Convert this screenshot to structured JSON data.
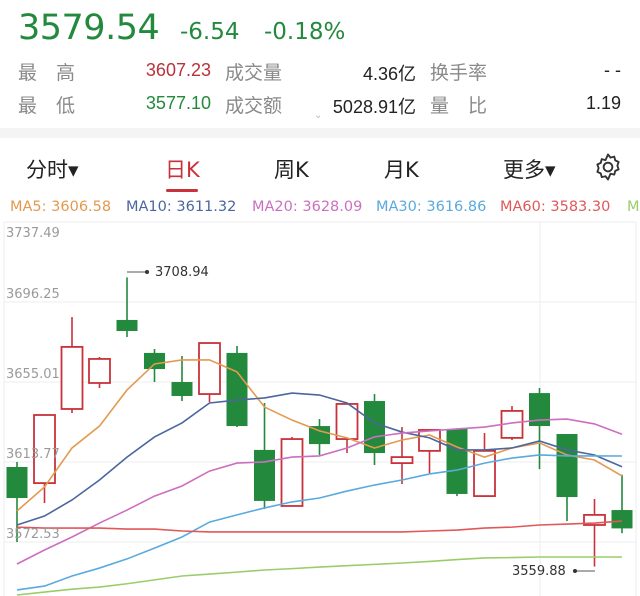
{
  "quote": {
    "price": "3579.54",
    "change": "-6.54",
    "change_pct": "-0.18%",
    "color": "#23893d"
  },
  "stats": {
    "high_label": "最　高",
    "high": "3607.23",
    "vol_label": "成交量",
    "vol": "4.36亿",
    "turnover_label": "换手率",
    "turnover": "- -",
    "low_label": "最　低",
    "low": "3577.10",
    "amount_label": "成交额",
    "amount": "5028.91亿",
    "ratio_label": "量　比",
    "ratio": "1.19",
    "expand_icon": "chevron-down-icon"
  },
  "tabs": [
    {
      "label": "分时▾"
    },
    {
      "label": "日K",
      "active": true
    },
    {
      "label": "周K"
    },
    {
      "label": "月K"
    },
    {
      "label": "更多▾"
    }
  ],
  "settings_icon": "gear-icon",
  "ma_legend": [
    {
      "label": "MA5: 3606.58",
      "color": "#e39a50"
    },
    {
      "label": "MA10: 3611.32",
      "color": "#4b669e"
    },
    {
      "label": "MA20: 3628.09",
      "color": "#cc6fc0"
    },
    {
      "label": "MA30: 3616.86",
      "color": "#5aaade"
    },
    {
      "label": "MA60: 3583.30",
      "color": "#e05858"
    },
    {
      "label": "M",
      "color": "#9acd6a"
    }
  ],
  "chart_data": {
    "type": "candlestick",
    "y_ticks": [
      "3737.49",
      "3696.25",
      "3655.01",
      "3613.77",
      "3572.53"
    ],
    "ylim": [
      3537.0,
      3737.49
    ],
    "grid": true,
    "up_color": "#c8323a",
    "down_color": "#23893d",
    "high_annotation": "3708.94",
    "low_annotation": "3559.88",
    "candles": [
      {
        "o": 3611.2,
        "c": 3595.2,
        "h": 3613.8,
        "l": 3572.5
      },
      {
        "o": 3602.9,
        "c": 3638.0,
        "h": 3638.0,
        "l": 3592.6
      },
      {
        "o": 3641.1,
        "c": 3673.1,
        "h": 3688.5,
        "l": 3639.0
      },
      {
        "o": 3654.5,
        "c": 3666.9,
        "h": 3667.9,
        "l": 3651.9
      },
      {
        "o": 3687.0,
        "c": 3681.3,
        "h": 3708.94,
        "l": 3678.2
      },
      {
        "o": 3670.0,
        "c": 3661.7,
        "h": 3672.0,
        "l": 3655.0
      },
      {
        "o": 3655.0,
        "c": 3647.8,
        "h": 3668.4,
        "l": 3645.2
      },
      {
        "o": 3648.8,
        "c": 3675.1,
        "h": 3675.1,
        "l": 3644.7
      },
      {
        "o": 3670.0,
        "c": 3632.3,
        "h": 3673.6,
        "l": 3631.8
      },
      {
        "o": 3620.0,
        "c": 3593.7,
        "h": 3644.2,
        "l": 3589.5
      },
      {
        "o": 3591.1,
        "c": 3625.6,
        "h": 3626.7,
        "l": 3591.1
      },
      {
        "o": 3632.3,
        "c": 3623.0,
        "h": 3635.9,
        "l": 3617.4
      },
      {
        "o": 3625.6,
        "c": 3643.7,
        "h": 3644.2,
        "l": 3618.4
      },
      {
        "o": 3645.2,
        "c": 3618.4,
        "h": 3648.8,
        "l": 3612.2
      },
      {
        "o": 3613.2,
        "c": 3616.3,
        "h": 3631.8,
        "l": 3602.4
      },
      {
        "o": 3619.5,
        "c": 3630.3,
        "h": 3630.3,
        "l": 3608.1
      },
      {
        "o": 3630.8,
        "c": 3597.3,
        "h": 3630.8,
        "l": 3596.2
      },
      {
        "o": 3596.2,
        "c": 3619.5,
        "h": 3628.7,
        "l": 3595.7
      },
      {
        "o": 3626.2,
        "c": 3640.1,
        "h": 3642.6,
        "l": 3625.1
      },
      {
        "o": 3649.3,
        "c": 3632.3,
        "h": 3651.9,
        "l": 3610.1
      },
      {
        "o": 3628.2,
        "c": 3595.7,
        "h": 3628.2,
        "l": 3583.3
      },
      {
        "o": 3581.3,
        "c": 3586.5,
        "h": 3594.7,
        "l": 3559.88
      },
      {
        "o": 3589.0,
        "c": 3579.54,
        "h": 3607.23,
        "l": 3577.1
      }
    ],
    "series": [
      {
        "name": "MA5",
        "color": "#e39a50",
        "values": [
          3588.5,
          3600.9,
          3621.0,
          3632.3,
          3650.9,
          3664.3,
          3666.4,
          3666.4,
          3660.2,
          3642.1,
          3635.4,
          3629.8,
          3626.2,
          3621.0,
          3625.1,
          3627.7,
          3621.5,
          3616.3,
          3621.0,
          3623.6,
          3617.4,
          3614.8,
          3606.58
        ]
      },
      {
        "name": "MA10",
        "color": "#4b669e",
        "values": [
          3581.3,
          3585.9,
          3594.2,
          3604.5,
          3616.3,
          3626.7,
          3633.9,
          3644.2,
          3645.7,
          3646.8,
          3649.3,
          3648.3,
          3644.2,
          3633.9,
          3629.2,
          3626.2,
          3620.0,
          3620.0,
          3621.0,
          3624.6,
          3620.0,
          3617.4,
          3611.32
        ]
      },
      {
        "name": "MA20",
        "color": "#cc6fc0",
        "values": [
          3561.2,
          3568.4,
          3575.1,
          3582.3,
          3589.0,
          3596.2,
          3601.4,
          3609.1,
          3613.2,
          3613.8,
          3616.3,
          3616.9,
          3621.0,
          3626.7,
          3628.7,
          3629.8,
          3630.8,
          3631.8,
          3633.9,
          3635.4,
          3635.9,
          3633.4,
          3628.09
        ]
      },
      {
        "name": "MA30",
        "color": "#5aaade",
        "values": [
          3547.8,
          3549.8,
          3555.0,
          3559.1,
          3563.8,
          3569.4,
          3575.1,
          3582.8,
          3586.5,
          3590.1,
          3593.2,
          3595.2,
          3598.8,
          3601.9,
          3604.5,
          3607.6,
          3609.6,
          3613.2,
          3615.8,
          3617.4,
          3616.9,
          3616.9,
          3616.86
        ]
      },
      {
        "name": "MA60",
        "color": "#e05858",
        "values": [
          3580.2,
          3579.7,
          3579.7,
          3579.7,
          3579.2,
          3579.2,
          3578.2,
          3577.7,
          3577.7,
          3577.7,
          3577.7,
          3577.7,
          3577.7,
          3577.7,
          3577.7,
          3578.2,
          3578.7,
          3579.7,
          3580.2,
          3581.3,
          3581.8,
          3582.3,
          3583.3
        ]
      },
      {
        "color": "#9acd6a",
        "values": [
          3545.2,
          3546.7,
          3548.2,
          3549.3,
          3551.0,
          3553.0,
          3555.0,
          3556.0,
          3557.0,
          3558.1,
          3558.8,
          3559.6,
          3560.3,
          3561.0,
          3561.7,
          3562.5,
          3563.5,
          3564.3,
          3564.5,
          3564.8,
          3564.8,
          3564.8,
          3564.8
        ]
      }
    ]
  }
}
